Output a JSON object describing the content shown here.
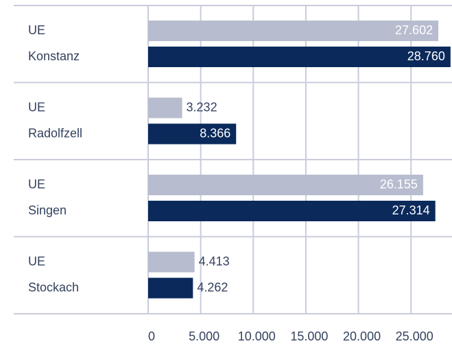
{
  "chart_data": {
    "type": "bar",
    "orientation": "horizontal",
    "categories": [
      "UE",
      "Konstanz",
      "UE",
      "Radolfzell",
      "UE",
      "Singen",
      "UE",
      "Stockach"
    ],
    "values": [
      27602,
      28760,
      3232,
      8366,
      26155,
      27314,
      4413,
      4262
    ],
    "value_labels": [
      "27.602",
      "28.760",
      "3.232",
      "8.366",
      "26.155",
      "27.314",
      "4.413",
      "4.262"
    ],
    "colors": [
      "#b8bccf",
      "#0b2a5b",
      "#b8bccf",
      "#0b2a5b",
      "#b8bccf",
      "#0b2a5b",
      "#b8bccf",
      "#0b2a5b"
    ],
    "xlim": [
      0,
      28900
    ],
    "xticks": [
      0,
      {
        "value": 5000,
        "label": "5.000"
      },
      {
        "value": 10000,
        "label": "10.000"
      },
      {
        "value": 15000,
        "label": "15.000"
      },
      {
        "value": 20000,
        "label": "20.000"
      },
      {
        "value": 25000,
        "label": "25.000"
      }
    ],
    "grid": true
  }
}
